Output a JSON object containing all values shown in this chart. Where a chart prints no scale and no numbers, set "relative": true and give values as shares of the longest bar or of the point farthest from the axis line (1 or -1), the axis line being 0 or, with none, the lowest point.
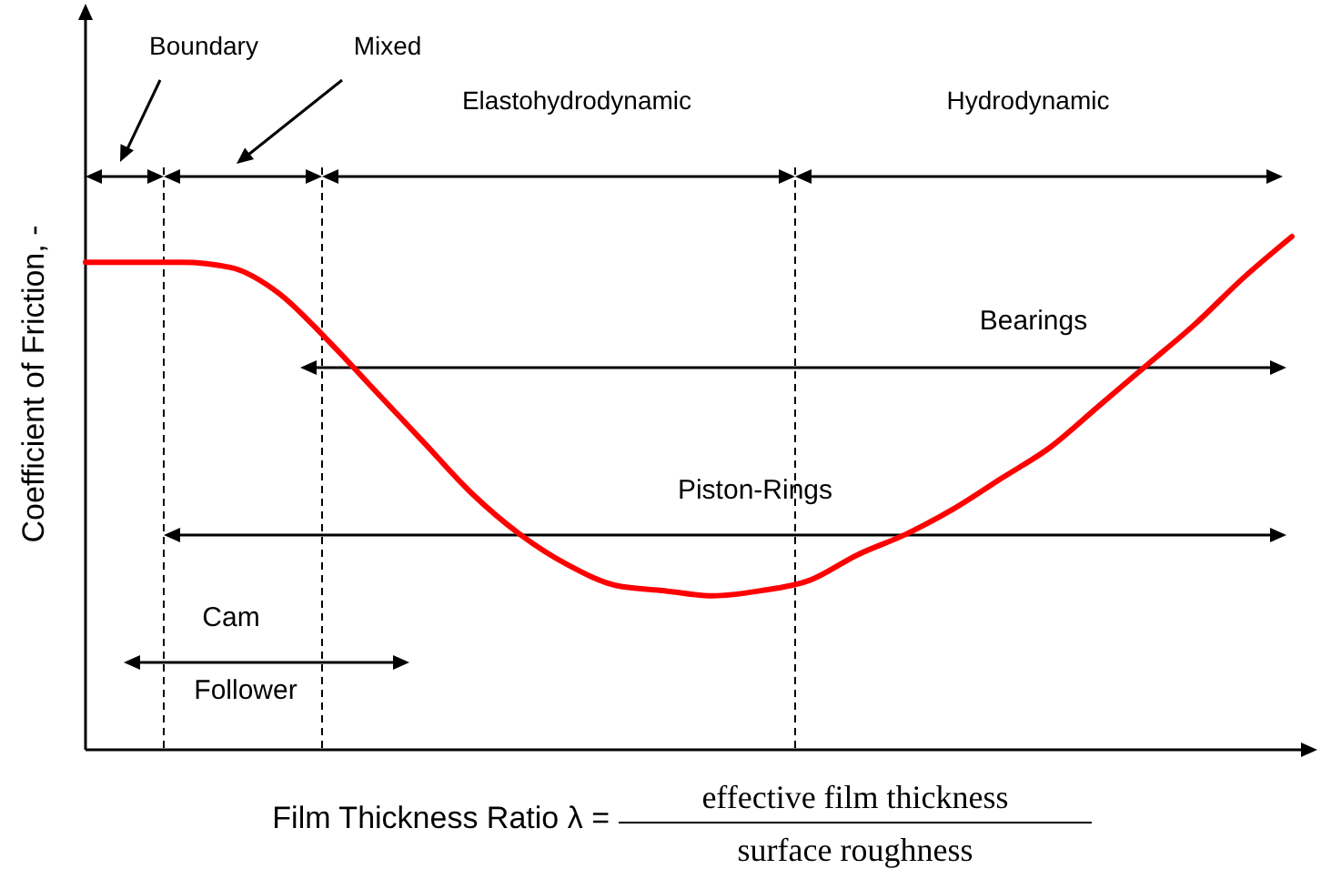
{
  "chart_data": {
    "type": "line",
    "relative": true,
    "xlabel": "Film Thickness Ratio λ = $^{effective film thickness}$$_{surface roughness}$",
    "ylabel": "Coefficient of Friction, -",
    "categories": [
      null,
      null,
      null,
      null,
      null,
      null,
      null,
      null,
      null,
      null,
      null,
      null,
      null,
      null,
      null,
      null,
      null,
      null,
      null,
      null,
      null,
      null,
      null,
      null,
      null,
      null
    ],
    "series": [
      {
        "color": "#ff0000",
        "values": [
          0.95,
          0.95,
          0.95,
          0.94,
          0.89,
          0.8,
          0.7,
          0.6,
          0.5,
          0.42,
          0.36,
          0.32,
          0.31,
          0.3,
          0.31,
          0.33,
          0.38,
          0.42,
          0.47,
          0.53,
          0.59,
          0.67,
          0.75,
          0.83,
          0.92,
          1
        ]
      }
    ],
    "annotations": [
      "Boundary",
      "Mixed",
      "Elastohydrodynamic",
      "Hydrodynamic",
      "Bearings",
      "Piston-Rings",
      "Cam",
      "Follower"
    ]
  }
}
